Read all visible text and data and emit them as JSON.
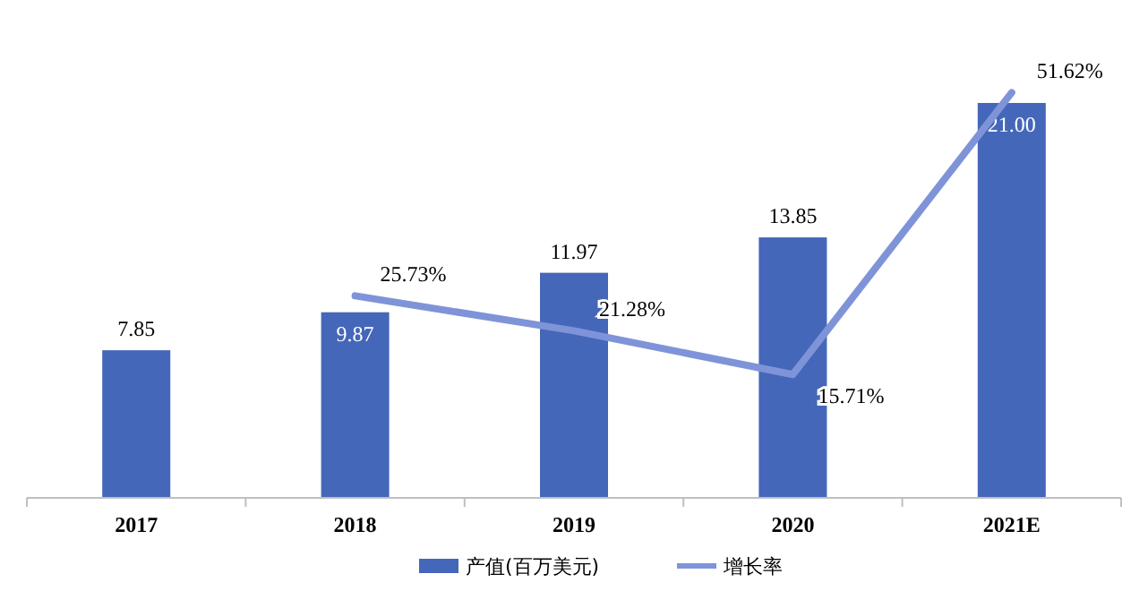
{
  "chart_data": {
    "type": "bar",
    "categories": [
      "2017",
      "2018",
      "2019",
      "2020",
      "2021E"
    ],
    "series": [
      {
        "name": "产值(百万美元)",
        "color": "#4467b9",
        "values": [
          7.85,
          9.87,
          11.97,
          13.85,
          21.0
        ],
        "value_labels": [
          "7.85",
          "9.87",
          "11.97",
          "13.85",
          "21.00"
        ]
      },
      {
        "name": "增长率",
        "type": "line",
        "axis": "y2",
        "color": "#7f93d8",
        "values": [
          null,
          25.73,
          21.28,
          15.71,
          51.62
        ],
        "value_labels": [
          null,
          "25.73%",
          "21.28%",
          "15.71%",
          "51.62%"
        ]
      }
    ],
    "legend": "bottom",
    "grid": false,
    "marker": "none",
    "line_style": "solid"
  }
}
